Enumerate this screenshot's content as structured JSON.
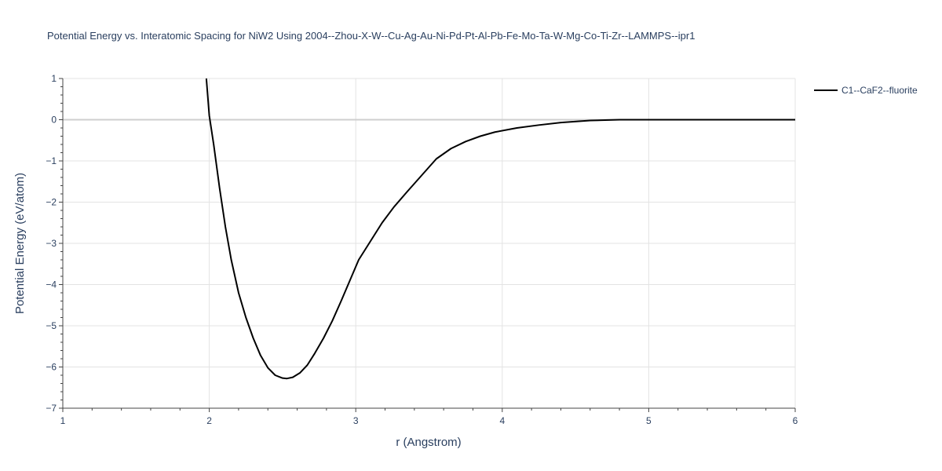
{
  "chart_data": {
    "type": "line",
    "title": "Potential Energy vs. Interatomic Spacing for NiW2 Using 2004--Zhou-X-W--Cu-Ag-Au-Ni-Pd-Pt-Al-Pb-Fe-Mo-Ta-W-Mg-Co-Ti-Zr--LAMMPS--ipr1",
    "xlabel": "r (Angstrom)",
    "ylabel": "Potential Energy (eV/atom)",
    "xlim": [
      1,
      6
    ],
    "ylim": [
      -7,
      1
    ],
    "xticks": [
      1,
      2,
      3,
      4,
      5,
      6
    ],
    "xtick_labels": [
      "1",
      "2",
      "3",
      "4",
      "5",
      "6"
    ],
    "yticks": [
      1,
      0,
      -1,
      -2,
      -3,
      -4,
      -5,
      -6,
      -7
    ],
    "ytick_labels": [
      "1",
      "0",
      "−1",
      "−2",
      "−3",
      "−4",
      "−5",
      "−6",
      "−7"
    ],
    "grid": true,
    "legend_position": "top-right",
    "series": [
      {
        "name": "C1--CaF2--fluorite",
        "color": "#000000",
        "x": [
          1.98,
          2.0,
          2.03,
          2.07,
          2.11,
          2.15,
          2.2,
          2.25,
          2.3,
          2.35,
          2.4,
          2.45,
          2.5,
          2.53,
          2.57,
          2.62,
          2.67,
          2.72,
          2.78,
          2.84,
          2.9,
          2.96,
          3.02,
          3.1,
          3.18,
          3.26,
          3.35,
          3.45,
          3.55,
          3.65,
          3.75,
          3.85,
          3.95,
          4.1,
          4.25,
          4.4,
          4.6,
          4.8,
          5.0,
          5.5,
          6.0
        ],
        "y": [
          1.0,
          0.1,
          -0.6,
          -1.65,
          -2.6,
          -3.4,
          -4.2,
          -4.8,
          -5.3,
          -5.72,
          -6.02,
          -6.2,
          -6.27,
          -6.28,
          -6.25,
          -6.14,
          -5.95,
          -5.67,
          -5.3,
          -4.88,
          -4.4,
          -3.9,
          -3.4,
          -2.95,
          -2.5,
          -2.12,
          -1.75,
          -1.35,
          -0.95,
          -0.7,
          -0.53,
          -0.4,
          -0.3,
          -0.2,
          -0.13,
          -0.07,
          -0.02,
          0.0,
          0.0,
          0.0,
          0.0
        ]
      }
    ]
  }
}
